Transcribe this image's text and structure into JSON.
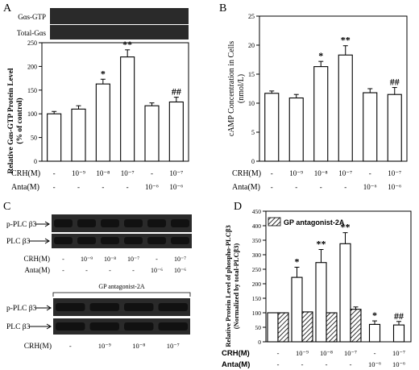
{
  "panels": {
    "A": {
      "letter": "A",
      "blot_labels": [
        "Gαs-GTP",
        "Total-Gαs"
      ],
      "ylabel": "Relative Gαs-GTP Protein Level",
      "ylabel2": "(% of control)",
      "row_labels": [
        "CRH(M)",
        "Anta(M)"
      ],
      "crh": [
        "-",
        "10⁻⁹",
        "10⁻⁸",
        "10⁻⁷",
        "-",
        "10⁻⁷"
      ],
      "anta": [
        "-",
        "-",
        "-",
        "-",
        "10⁻⁶",
        "10⁻⁶"
      ],
      "sig": [
        "",
        "",
        "*",
        "**",
        "",
        "##"
      ]
    },
    "B": {
      "letter": "B",
      "ylabel": "cAMP Concentration in Cells",
      "ylabel2": "(nmol/L)",
      "row_labels": [
        "CRH(M)",
        "Anta(M)"
      ],
      "crh": [
        "-",
        "10⁻⁹",
        "10⁻⁸",
        "10⁻⁷",
        "-",
        "10⁻⁷"
      ],
      "anta": [
        "-",
        "-",
        "-",
        "-",
        "10⁻⁶",
        "10⁻⁶"
      ],
      "sig": [
        "",
        "",
        "*",
        "**",
        "",
        "##"
      ]
    },
    "C": {
      "letter": "C",
      "blot1_labels": [
        "p-PLC β3",
        "PLC β3"
      ],
      "row_labels": [
        "CRH(M)",
        "Anta(M)"
      ],
      "crh": [
        "-",
        "10⁻⁹",
        "10⁻⁸",
        "10⁻⁷",
        "-",
        "10⁻⁷"
      ],
      "anta": [
        "-",
        "-",
        "-",
        "-",
        "10⁻⁶",
        "10⁻⁶"
      ],
      "group_label": "GP antagonist-2A",
      "blot2_labels": [
        "p-PLC β3",
        "PLC β3"
      ],
      "crh2_label": "CRH(M)",
      "crh2": [
        "-",
        "10⁻⁹",
        "10⁻⁸",
        "10⁻⁷"
      ]
    },
    "D": {
      "letter": "D",
      "ylabel": "Relative Protein Level of phospho-PLCβ3",
      "ylabel2": "(Normalized by total-PLCβ3)",
      "legend": "GP antagonist-2A",
      "row_labels": [
        "CRH(M)",
        "Anta(M)"
      ],
      "crh": [
        "-",
        "10⁻⁹",
        "10⁻⁸",
        "10⁻⁷",
        "-",
        "10⁻⁷"
      ],
      "anta": [
        "-",
        "-",
        "-",
        "-",
        "10⁻⁶",
        "10⁻⁶"
      ],
      "sig": [
        "",
        "*",
        "**",
        "**",
        "*",
        "##"
      ]
    }
  },
  "colors": {
    "ink": "#000000",
    "blot_bg": "#2a2a2a",
    "band": "#111111"
  },
  "chart_data": [
    {
      "type": "bar",
      "panel": "A",
      "categories": [
        "1",
        "2",
        "3",
        "4",
        "5",
        "6"
      ],
      "values": [
        100,
        110,
        163,
        220,
        117,
        125
      ],
      "errors": [
        5,
        7,
        10,
        15,
        6,
        10
      ],
      "ylim": [
        0,
        250
      ],
      "yticks": [
        0,
        50,
        100,
        150,
        200,
        250
      ],
      "ylabel": "Relative Gαs-GTP Protein Level (% of control)"
    },
    {
      "type": "bar",
      "panel": "B",
      "categories": [
        "1",
        "2",
        "3",
        "4",
        "5",
        "6"
      ],
      "values": [
        11.7,
        10.9,
        16.3,
        18.3,
        11.8,
        11.5
      ],
      "errors": [
        0.4,
        0.6,
        0.9,
        1.6,
        0.7,
        1.2
      ],
      "ylim": [
        0,
        25
      ],
      "yticks": [
        0,
        5,
        10,
        15,
        20,
        25
      ],
      "ylabel": "cAMP Concentration in Cells (nmol/L)"
    },
    {
      "type": "bar",
      "panel": "D",
      "categories": [
        "1",
        "2",
        "3",
        "4",
        "5",
        "6"
      ],
      "series": [
        {
          "values": [
            100,
            222,
            273,
            338,
            60,
            58
          ],
          "errors": [
            0,
            35,
            45,
            38,
            12,
            12
          ]
        },
        {
          "name": "GP antagonist-2A",
          "values": [
            100,
            103,
            100,
            112,
            null,
            null
          ],
          "errors": [
            0,
            0,
            0,
            8,
            null,
            null
          ]
        }
      ],
      "ylim": [
        0,
        450
      ],
      "yticks": [
        0,
        50,
        100,
        150,
        200,
        250,
        300,
        350,
        400,
        450
      ],
      "ylabel": "Relative Protein Level of phospho-PLCβ3 (Normalized by total-PLCβ3)"
    }
  ]
}
